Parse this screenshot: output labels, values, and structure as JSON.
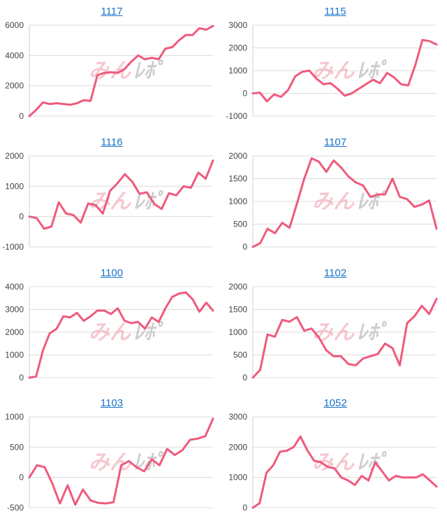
{
  "watermark": {
    "part1": "みん",
    "part2": "ﾚﾎﾟ"
  },
  "colors": {
    "line": "#ef5a7c",
    "title_link": "#1a73c9",
    "grid": "#dcdcdc"
  },
  "chart_data": [
    {
      "type": "line",
      "title": "1117",
      "ylim": [
        0,
        6000
      ],
      "yticks": [
        0,
        2000,
        4000,
        6000
      ],
      "series": [
        {
          "values": [
            0,
            400,
            900,
            800,
            850,
            800,
            750,
            850,
            1050,
            1000,
            2700,
            2850,
            2900,
            2850,
            3100,
            3600,
            4000,
            3750,
            3850,
            3750,
            4450,
            4550,
            5000,
            5350,
            5350,
            5800,
            5700,
            5950
          ]
        }
      ]
    },
    {
      "type": "line",
      "title": "1115",
      "ylim": [
        -1000,
        3000
      ],
      "yticks": [
        -1000,
        0,
        1000,
        2000,
        3000
      ],
      "series": [
        {
          "values": [
            0,
            30,
            -350,
            -50,
            -150,
            150,
            750,
            950,
            1000,
            650,
            400,
            450,
            200,
            -100,
            0,
            200,
            400,
            600,
            450,
            900,
            700,
            400,
            350,
            1250,
            2350,
            2300,
            2150
          ]
        }
      ]
    },
    {
      "type": "line",
      "title": "1116",
      "ylim": [
        -1000,
        2000
      ],
      "yticks": [
        -1000,
        0,
        1000,
        2000
      ],
      "series": [
        {
          "values": [
            0,
            -50,
            -400,
            -330,
            470,
            100,
            50,
            -200,
            430,
            380,
            100,
            850,
            1100,
            1400,
            1150,
            750,
            800,
            420,
            250,
            770,
            700,
            1000,
            950,
            1450,
            1250,
            1850
          ]
        }
      ]
    },
    {
      "type": "line",
      "title": "1107",
      "ylim": [
        0,
        2000
      ],
      "yticks": [
        0,
        500,
        1000,
        1500,
        2000
      ],
      "series": [
        {
          "values": [
            0,
            80,
            400,
            300,
            530,
            420,
            950,
            1500,
            1950,
            1870,
            1650,
            1900,
            1750,
            1550,
            1420,
            1350,
            1100,
            1150,
            1160,
            1500,
            1100,
            1050,
            880,
            930,
            1020,
            400
          ]
        }
      ]
    },
    {
      "type": "line",
      "title": "1100",
      "ylim": [
        0,
        4000
      ],
      "yticks": [
        0,
        1000,
        2000,
        3000,
        4000
      ],
      "series": [
        {
          "values": [
            0,
            50,
            1200,
            1950,
            2150,
            2700,
            2650,
            2850,
            2500,
            2700,
            2950,
            2950,
            2800,
            3050,
            2500,
            2400,
            2450,
            2150,
            2650,
            2450,
            3050,
            3550,
            3700,
            3750,
            3450,
            2900,
            3300,
            2950
          ]
        }
      ]
    },
    {
      "type": "line",
      "title": "1102",
      "ylim": [
        0,
        2000
      ],
      "yticks": [
        0,
        500,
        1000,
        1500,
        2000
      ],
      "series": [
        {
          "values": [
            0,
            170,
            950,
            900,
            1270,
            1230,
            1330,
            1030,
            1080,
            880,
            600,
            470,
            470,
            300,
            270,
            420,
            470,
            520,
            750,
            650,
            270,
            1200,
            1350,
            1580,
            1400,
            1730
          ]
        }
      ]
    },
    {
      "type": "line",
      "title": "1103",
      "ylim": [
        -500,
        1000
      ],
      "yticks": [
        -500,
        0,
        500,
        1000
      ],
      "series": [
        {
          "values": [
            0,
            200,
            170,
            -100,
            -430,
            -130,
            -450,
            -200,
            -380,
            -420,
            -430,
            -410,
            200,
            270,
            170,
            100,
            300,
            200,
            470,
            370,
            450,
            620,
            640,
            680,
            970
          ]
        }
      ]
    },
    {
      "type": "line",
      "title": "1052",
      "ylim": [
        0,
        3000
      ],
      "yticks": [
        0,
        1000,
        2000,
        3000
      ],
      "series": [
        {
          "values": [
            0,
            150,
            1150,
            1400,
            1850,
            1880,
            2000,
            2350,
            1900,
            1550,
            1500,
            1350,
            1300,
            1000,
            900,
            750,
            1050,
            900,
            1500,
            1200,
            900,
            1050,
            1000,
            1000,
            1000,
            1100,
            900,
            700
          ]
        }
      ]
    }
  ]
}
